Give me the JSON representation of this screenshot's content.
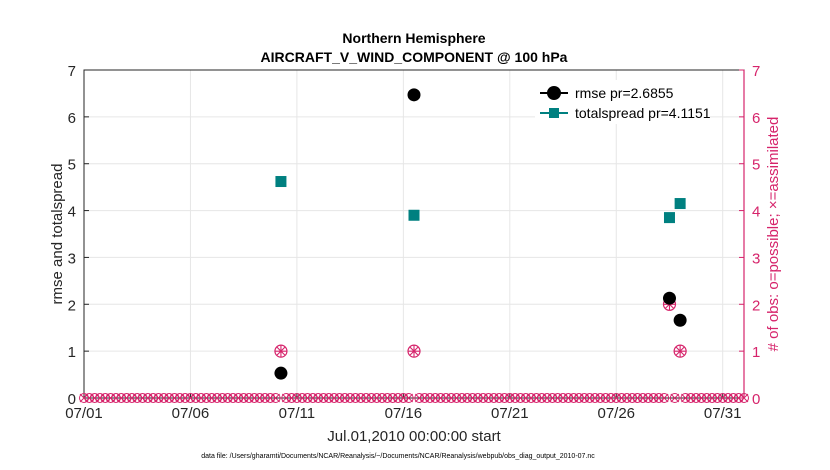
{
  "chart_data": {
    "type": "scatter",
    "title": "Northern Hemisphere",
    "subtitle": "AIRCRAFT_V_WIND_COMPONENT @ 100 hPa",
    "xlabel": "Jul.01,2010 00:00:00 start",
    "ylabel_left": "rmse and totalspread",
    "ylabel_right": "# of obs: o=possible; ×=assimilated",
    "footnote": "data file: /Users/gharamti/Documents/NCAR/Reanalysis/~/Documents/NCAR/Reanalysis/webpub/obs_diag_output_2010-07.nc",
    "xlim": [
      1,
      32
    ],
    "ylim": [
      0,
      7
    ],
    "x_ticks": [
      {
        "day": 1,
        "label": "07/01"
      },
      {
        "day": 6,
        "label": "07/06"
      },
      {
        "day": 11,
        "label": "07/11"
      },
      {
        "day": 16,
        "label": "07/16"
      },
      {
        "day": 21,
        "label": "07/21"
      },
      {
        "day": 26,
        "label": "07/26"
      },
      {
        "day": 31,
        "label": "07/31"
      }
    ],
    "y_ticks": [
      "0",
      "1",
      "2",
      "3",
      "4",
      "5",
      "6",
      "7"
    ],
    "series": [
      {
        "name": "rmse pr=2.6855",
        "color": "#000000",
        "marker": "circle",
        "x": [
          10.25,
          16.5,
          28.5,
          29.0
        ],
        "y": [
          0.53,
          6.47,
          2.13,
          1.66
        ]
      },
      {
        "name": "totalspread pr=4.1151",
        "color": "#008080",
        "marker": "square",
        "x": [
          10.25,
          16.5,
          28.5,
          29.0
        ],
        "y": [
          4.62,
          3.9,
          3.85,
          4.15
        ]
      }
    ],
    "obs_possible": {
      "color": "#d6246b",
      "x": [
        10.25,
        16.5,
        28.5,
        29.0
      ],
      "y": [
        1,
        1,
        2,
        1
      ]
    },
    "obs_assimilated": {
      "color": "#d6246b",
      "x": [
        10.25,
        16.5,
        28.5,
        29.0
      ],
      "y": [
        1,
        1,
        2,
        1
      ]
    },
    "zero_obs_step_days": 0.25,
    "grid": true,
    "legend_position": "top-right"
  }
}
